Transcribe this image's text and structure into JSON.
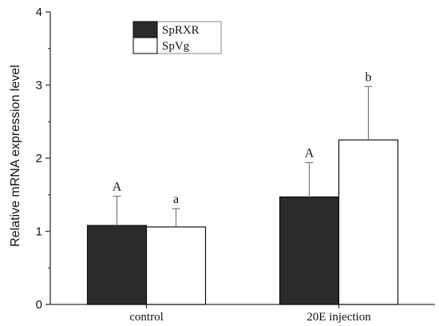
{
  "chart_data": {
    "type": "bar",
    "title": "",
    "xlabel": "",
    "ylabel": "Relative mRNA expression level",
    "ylim": [
      0,
      4
    ],
    "yticks": [
      0,
      1,
      2,
      3,
      4
    ],
    "categories": [
      "control",
      "20E injection"
    ],
    "series": [
      {
        "name": "SpRXR",
        "color": "#2b2b2b",
        "values": [
          1.08,
          1.47
        ],
        "errors": [
          0.4,
          0.47
        ],
        "labels": [
          "A",
          "A"
        ]
      },
      {
        "name": "SpVg",
        "color": "#ffffff",
        "values": [
          1.06,
          2.25
        ],
        "errors": [
          0.25,
          0.73
        ],
        "labels": [
          "a",
          "b"
        ]
      }
    ],
    "legend_position": "top-left",
    "grid": false
  }
}
